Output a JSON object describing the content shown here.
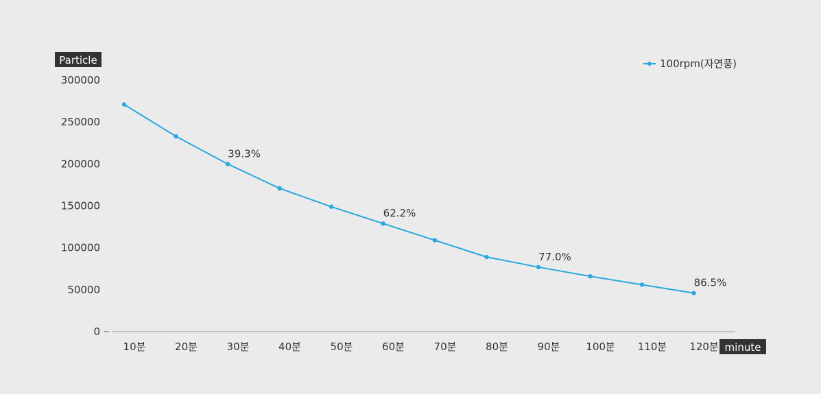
{
  "chart_data": {
    "type": "line",
    "categories": [
      "10분",
      "20분",
      "30분",
      "40분",
      "50분",
      "60분",
      "70분",
      "80분",
      "90분",
      "100분",
      "110분",
      "120분"
    ],
    "series": [
      {
        "name": "100rpm(자연풍)",
        "values": [
          271000,
          233000,
          200000,
          171000,
          149000,
          129000,
          109000,
          89000,
          77000,
          66000,
          56000,
          46000
        ]
      }
    ],
    "data_labels": [
      {
        "index": 2,
        "text": "39.3%"
      },
      {
        "index": 5,
        "text": "62.2%"
      },
      {
        "index": 8,
        "text": "77.0%"
      },
      {
        "index": 11,
        "text": "86.5%"
      }
    ],
    "yticks": [
      "0",
      "50000",
      "100000",
      "150000",
      "200000",
      "250000",
      "300000"
    ],
    "ylim": [
      0,
      300000
    ],
    "ylabel": "Particle",
    "xlabel": "minute",
    "legend_position": "top-right",
    "grid": false,
    "colors": {
      "series": "#29a8e0",
      "axis_tag_bg": "#333333",
      "axis_line": "#999999",
      "background": "#ebebeb"
    }
  }
}
